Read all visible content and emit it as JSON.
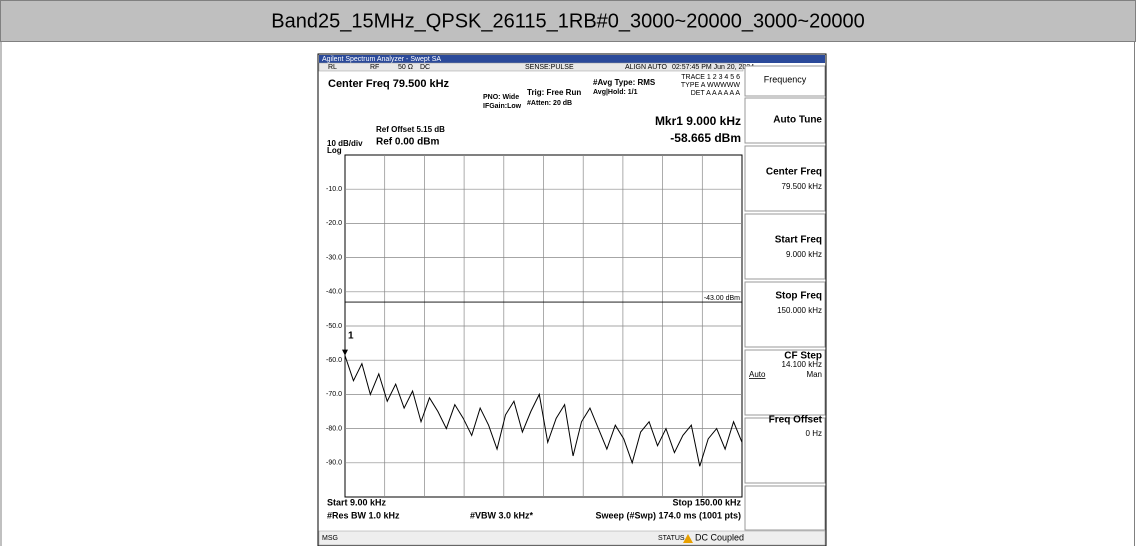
{
  "header": {
    "title": "Band25_15MHz_QPSK_26115_1RB#0_3000~20000_3000~20000"
  },
  "analyzer": {
    "window_title": "Agilent Spectrum Analyzer - Swept SA",
    "status": {
      "rl": "RL",
      "rf": "RF",
      "impedance": "50 Ω",
      "coupling": "DC",
      "sense": "SENSE:PULSE",
      "align": "ALIGN AUTO",
      "time": "02:57:45 PM Jun 20, 2024"
    },
    "center_freq": "Center Freq 79.500 kHz",
    "pno": "PNO: Wide",
    "ifgain": "IFGain:Low",
    "trig": "Trig: Free Run",
    "atten": "#Atten: 20 dB",
    "avg_type": "#Avg Type: RMS",
    "avg_hold": "Avg|Hold: 1/1",
    "trace_row": "TRACE 1 2 3 4 5 6",
    "type_row": "TYPE A WWWWW",
    "det_row": "DET A A A A A A",
    "ref_offset": "Ref Offset 5.15 dB",
    "scale": "10 dB/div",
    "ref_level": "Ref 0.00 dBm",
    "log": "Log",
    "marker_freq": "Mkr1 9.000 kHz",
    "marker_level": "-58.665 dBm",
    "start": "Start 9.00 kHz",
    "stop": "Stop 150.00 kHz",
    "rbw": "#Res BW 1.0 kHz",
    "vbw": "#VBW 3.0 kHz*",
    "sweep": "Sweep (#Swp) 174.0 ms (1001 pts)",
    "msg": "MSG",
    "status_label": "STATUS",
    "dc_coupled": "DC Coupled"
  },
  "softkeys": {
    "menu": "Frequency",
    "auto_tune": "Auto Tune",
    "center_freq": {
      "label": "Center Freq",
      "value": "79.500 kHz"
    },
    "start_freq": {
      "label": "Start Freq",
      "value": "9.000 kHz"
    },
    "stop_freq": {
      "label": "Stop Freq",
      "value": "150.000 kHz"
    },
    "cf_step": {
      "label": "CF Step",
      "value": "14.100 kHz",
      "auto": "Auto",
      "man": "Man"
    },
    "freq_offset": {
      "label": "Freq Offset",
      "value": "0 Hz"
    }
  },
  "plot": {
    "xlim": [
      9,
      150
    ],
    "ylim": [
      -100,
      0
    ],
    "yticks": [
      {
        "value": -10,
        "label": "-10.0"
      },
      {
        "value": -20,
        "label": "-20.0"
      },
      {
        "value": -30,
        "label": "-30.0"
      },
      {
        "value": -40,
        "label": "-40.0"
      },
      {
        "value": -50,
        "label": "-50.0"
      },
      {
        "value": -60,
        "label": "-60.0"
      },
      {
        "value": -70,
        "label": "-70.0"
      },
      {
        "value": -80,
        "label": "-80.0"
      },
      {
        "value": -90,
        "label": "-90.0"
      }
    ],
    "display_line": {
      "value": -43,
      "label": "-43.00 dBm"
    },
    "marker": {
      "label": "1"
    },
    "trace": {
      "color": "#000000",
      "x": [
        9,
        12,
        15,
        18,
        21,
        24,
        27,
        30,
        33,
        36,
        39,
        42,
        45,
        48,
        51,
        54,
        57,
        60,
        63,
        66,
        69,
        72,
        75,
        78,
        81,
        84,
        87,
        90,
        93,
        96,
        99,
        102,
        105,
        108,
        111,
        114,
        117,
        120,
        123,
        126,
        129,
        132,
        135,
        138,
        141,
        144,
        147,
        150
      ],
      "values": [
        -58.665,
        -66,
        -61,
        -70,
        -64,
        -72,
        -67,
        -74,
        -69,
        -78,
        -71,
        -75,
        -80,
        -73,
        -77,
        -82,
        -74,
        -79,
        -86,
        -76,
        -72,
        -81,
        -75,
        -70,
        -84,
        -77,
        -73,
        -88,
        -78,
        -74,
        -80,
        -86,
        -79,
        -83,
        -90,
        -81,
        -78,
        -85,
        -80,
        -87,
        -82,
        -79,
        -91,
        -83,
        -80,
        -86,
        -78,
        -84
      ]
    }
  }
}
